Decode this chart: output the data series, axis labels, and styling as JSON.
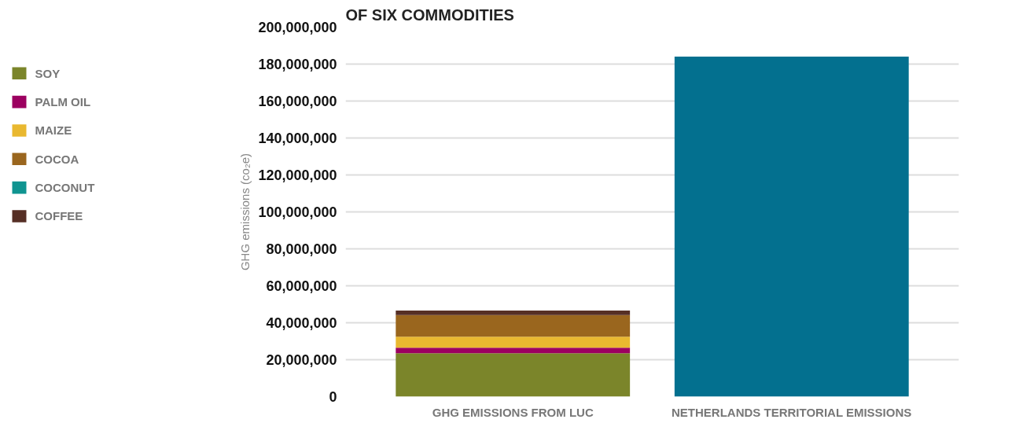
{
  "chart_data": {
    "type": "bar",
    "stacked": true,
    "title": "OF SIX COMMODITIES",
    "ylabel": "GHG emissions (co₂e)",
    "categories": [
      "GHG EMISSIONS FROM LUC",
      "NETHERLANDS TERRITORIAL EMISSIONS"
    ],
    "series": [
      {
        "name": "SOY",
        "color": "#7b852a",
        "values": [
          23500000,
          null
        ]
      },
      {
        "name": "PALM OIL",
        "color": "#9c0060",
        "values": [
          3000000,
          null
        ]
      },
      {
        "name": "MAIZE",
        "color": "#e9b830",
        "values": [
          6000000,
          null
        ]
      },
      {
        "name": "COCOA",
        "color": "#9a661e",
        "values": [
          11600000,
          null
        ]
      },
      {
        "name": "COCONUT",
        "color": "#0f9490",
        "values": [
          0,
          null
        ]
      },
      {
        "name": "COFFEE",
        "color": "#562f25",
        "values": [
          2500000,
          null
        ]
      },
      {
        "color": "#03708f",
        "values": [
          null,
          184000000
        ]
      }
    ],
    "ylim": [
      0,
      200000000
    ],
    "yticks": [
      0,
      {
        "value": 20000000,
        "label": "20,000,000"
      },
      {
        "value": 40000000,
        "label": "40,000,000"
      },
      {
        "value": 60000000,
        "label": "60,000,000"
      },
      {
        "value": 80000000,
        "label": "80,000,000"
      },
      {
        "value": 100000000,
        "label": "100,000,000"
      },
      {
        "value": 120000000,
        "label": "120,000,000"
      },
      {
        "value": 140000000,
        "label": "140,000,000"
      },
      {
        "value": 160000000,
        "label": "160,000,000"
      },
      {
        "value": 180000000,
        "label": "180,000,000"
      },
      {
        "value": 200000000,
        "label": "200,000,000"
      }
    ],
    "grid": "y",
    "legend": "left"
  }
}
